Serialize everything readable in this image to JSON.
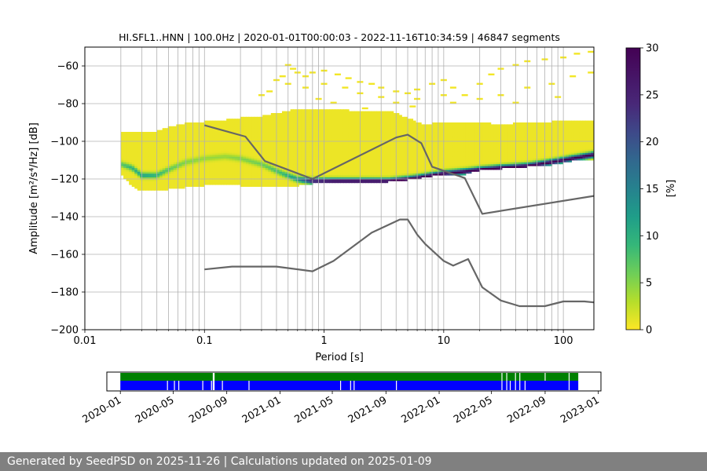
{
  "footer": {
    "text": "Generated by SeedPSD on 2025-11-26 | Calculations updated on 2025-01-09"
  },
  "chart_data": [
    {
      "type": "heatmap",
      "title": "HI.SFL1..HNN | 100.0Hz | 2020-01-01T00:00:03 - 2022-11-16T10:34:59 | 46847 segments",
      "xlabel": "Period [s]",
      "ylabel": "Amplitude [m²/s⁴/Hz] [dB]",
      "xscale": "log",
      "xlim": [
        0.01,
        180
      ],
      "ylim": [
        -200,
        -50
      ],
      "grid": true,
      "x_ticks": [
        0.01,
        0.1,
        1,
        10,
        100
      ],
      "x_tick_labels": [
        "0.01",
        "0.1",
        "1",
        "10",
        "100"
      ],
      "y_ticks": [
        -200,
        -180,
        -160,
        -140,
        -120,
        -100,
        -80,
        -60
      ],
      "y_tick_labels": [
        "−200",
        "−180",
        "−160",
        "−140",
        "−120",
        "−100",
        "−80",
        "−60"
      ],
      "colorbar": {
        "label": "[%]",
        "min": 0,
        "max": 30,
        "ticks": [
          0,
          5,
          10,
          15,
          20,
          25,
          30
        ],
        "colormap": "viridis_r"
      },
      "psd_envelope": {
        "period": [
          0.02,
          0.025,
          0.03,
          0.04,
          0.05,
          0.07,
          0.1,
          0.15,
          0.2,
          0.3,
          0.45,
          0.6,
          0.8,
          1.2,
          1.6,
          2.5,
          3.5,
          5,
          6.5,
          8,
          10,
          15,
          20,
          30,
          50,
          80,
          120,
          180
        ],
        "upper": [
          -95,
          -95,
          -96,
          -95,
          -93,
          -91,
          -90,
          -89,
          -88,
          -87,
          -85,
          -83,
          -83,
          -83,
          -84,
          -85,
          -84,
          -88,
          -91,
          -91,
          -90,
          -91,
          -90,
          -92,
          -90,
          -90,
          -89,
          -89
        ],
        "lower": [
          -117,
          -123,
          -126,
          -126,
          -125,
          -124,
          -123,
          -123,
          -123,
          -124,
          -124,
          -123,
          -122,
          -122,
          -122,
          -122,
          -121,
          -120,
          -119,
          -118,
          -118,
          -117,
          -115,
          -114,
          -113,
          -112,
          -110,
          -109
        ],
        "mode": [
          -112,
          -114,
          -118,
          -118,
          -115,
          -111,
          -109,
          -108,
          -109,
          -112,
          -117,
          -120,
          -121,
          -121,
          -121,
          -121,
          -121,
          -120,
          -119,
          -118,
          -117,
          -116,
          -115,
          -114,
          -113,
          -111,
          -109,
          -107
        ],
        "mode_strength": [
          7,
          10,
          12,
          10,
          7,
          5,
          4,
          4,
          5,
          6,
          9,
          14,
          28,
          30,
          30,
          30,
          30,
          30,
          30,
          30,
          30,
          30,
          30,
          30,
          30,
          30,
          30,
          30
        ]
      },
      "sparse_points_above": [
        [
          0.4,
          -68
        ],
        [
          0.45,
          -66
        ],
        [
          0.5,
          -60
        ],
        [
          0.55,
          -62
        ],
        [
          0.6,
          -64
        ],
        [
          0.7,
          -66
        ],
        [
          0.8,
          -64
        ],
        [
          1.0,
          -63
        ],
        [
          1.3,
          -65
        ],
        [
          1.6,
          -67
        ],
        [
          2.0,
          -69
        ],
        [
          2.5,
          -70
        ],
        [
          3.0,
          -72
        ],
        [
          4.0,
          -74
        ],
        [
          5.0,
          -75
        ],
        [
          6.0,
          -73
        ],
        [
          8.0,
          -70
        ],
        [
          10,
          -68
        ],
        [
          12,
          -72
        ],
        [
          15,
          -76
        ],
        [
          20,
          -70
        ],
        [
          25,
          -65
        ],
        [
          30,
          -62
        ],
        [
          40,
          -60
        ],
        [
          50,
          -58
        ],
        [
          70,
          -57
        ],
        [
          100,
          -56
        ],
        [
          130,
          -54
        ],
        [
          170,
          -53
        ],
        [
          0.5,
          -70
        ],
        [
          0.7,
          -72
        ],
        [
          1.0,
          -70
        ],
        [
          1.5,
          -72
        ],
        [
          2.0,
          -75
        ],
        [
          3.0,
          -77
        ],
        [
          4.0,
          -80
        ],
        [
          6.0,
          -78
        ],
        [
          10,
          -76
        ],
        [
          20,
          -78
        ],
        [
          30,
          -76
        ],
        [
          50,
          -72
        ],
        [
          80,
          -70
        ],
        [
          120,
          -66
        ],
        [
          170,
          -64
        ],
        [
          0.3,
          -76
        ],
        [
          0.35,
          -74
        ],
        [
          0.9,
          -78
        ],
        [
          1.2,
          -80
        ],
        [
          2.2,
          -83
        ],
        [
          5.5,
          -82
        ],
        [
          12,
          -80
        ],
        [
          40,
          -80
        ],
        [
          90,
          -77
        ]
      ],
      "series": [
        {
          "name": "",
          "x": [
            0.1,
            0.22,
            0.32,
            0.8,
            4.0,
            5.0,
            6.5,
            8.0,
            15,
            21,
            180
          ],
          "y": [
            -91.5,
            -97.5,
            -110.5,
            -120,
            -98,
            -96.5,
            -101,
            -113.5,
            -119.5,
            -138.5,
            -129
          ]
        },
        {
          "name": "",
          "x": [
            0.1,
            0.17,
            0.4,
            0.8,
            1.2,
            2.5,
            4.3,
            5.0,
            6.0,
            7.0,
            10,
            12,
            16,
            21,
            30,
            43,
            70,
            100,
            150,
            180
          ],
          "y": [
            -168,
            -166.5,
            -166.5,
            -169,
            -163.5,
            -148.5,
            -141.5,
            -141.5,
            -149.5,
            -154.5,
            -163.5,
            -166,
            -162.5,
            -177.5,
            -184.5,
            -187.5,
            -187.5,
            -185,
            -185,
            -185.5
          ]
        }
      ]
    },
    {
      "type": "timeline",
      "x_tick_labels": [
        "2020-01",
        "2020-05",
        "2020-09",
        "2021-01",
        "2021-05",
        "2021-09",
        "2022-01",
        "2022-05",
        "2022-09",
        "2023-01"
      ],
      "x_ticks": [
        "2020-01-01",
        "2020-05-01",
        "2020-09-01",
        "2021-01-01",
        "2021-05-01",
        "2021-09-01",
        "2022-01-01",
        "2022-05-01",
        "2022-09-01",
        "2023-01-01"
      ],
      "xlim": [
        "2019-12-01",
        "2023-01-07"
      ],
      "data_start": "2020-01-01",
      "data_end": "2022-11-16",
      "available_color": "#008000",
      "used_color": "#0000ff",
      "available_gaps": [
        "2020-08-01",
        "2020-08-03",
        "2022-05-25",
        "2022-06-05",
        "2022-06-25",
        "2022-07-05",
        "2022-09-01",
        "2022-10-26"
      ],
      "used_gaps": [
        "2020-04-18",
        "2020-05-04",
        "2020-05-14",
        "2020-07-08",
        "2020-07-28",
        "2020-08-01",
        "2020-08-03",
        "2020-08-22",
        "2020-10-22",
        "2021-05-20",
        "2021-06-12",
        "2021-06-20",
        "2021-09-25",
        "2022-05-25",
        "2022-06-05",
        "2022-06-13",
        "2022-06-25",
        "2022-07-05",
        "2022-07-17",
        "2022-10-26"
      ]
    }
  ]
}
